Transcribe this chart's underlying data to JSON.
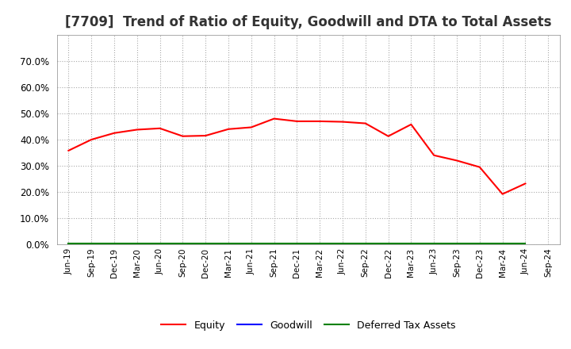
{
  "title": "[7709]  Trend of Ratio of Equity, Goodwill and DTA to Total Assets",
  "x_labels": [
    "Jun-19",
    "Sep-19",
    "Dec-19",
    "Mar-20",
    "Jun-20",
    "Sep-20",
    "Dec-20",
    "Mar-21",
    "Jun-21",
    "Sep-21",
    "Dec-21",
    "Mar-22",
    "Jun-22",
    "Sep-22",
    "Dec-22",
    "Mar-23",
    "Jun-23",
    "Sep-23",
    "Dec-23",
    "Mar-24",
    "Jun-24",
    "Sep-24"
  ],
  "equity": [
    0.358,
    0.4,
    0.425,
    0.438,
    0.443,
    0.413,
    0.415,
    0.44,
    0.447,
    0.48,
    0.47,
    0.47,
    0.468,
    0.462,
    0.413,
    0.458,
    0.34,
    0.32,
    0.295,
    0.192,
    0.232,
    null
  ],
  "goodwill": [
    0.0,
    0.0,
    0.0,
    0.0,
    0.0,
    0.0,
    0.0,
    0.0,
    0.0,
    0.0,
    0.0,
    0.0,
    0.0,
    0.0,
    0.0,
    0.0,
    0.0,
    0.0,
    0.0,
    0.0,
    0.0,
    null
  ],
  "dta": [
    0.002,
    0.002,
    0.002,
    0.002,
    0.002,
    0.002,
    0.002,
    0.002,
    0.002,
    0.002,
    0.002,
    0.002,
    0.002,
    0.002,
    0.002,
    0.002,
    0.002,
    0.002,
    0.002,
    0.002,
    0.002,
    null
  ],
  "equity_color": "#FF0000",
  "goodwill_color": "#0000FF",
  "dta_color": "#008000",
  "ylim": [
    0.0,
    0.8
  ],
  "yticks": [
    0.0,
    0.1,
    0.2,
    0.3,
    0.4,
    0.5,
    0.6,
    0.7
  ],
  "background_color": "#FFFFFF",
  "plot_bg_color": "#FFFFFF",
  "grid_color": "#AAAAAA",
  "title_fontsize": 12,
  "legend_labels": [
    "Equity",
    "Goodwill",
    "Deferred Tax Assets"
  ]
}
